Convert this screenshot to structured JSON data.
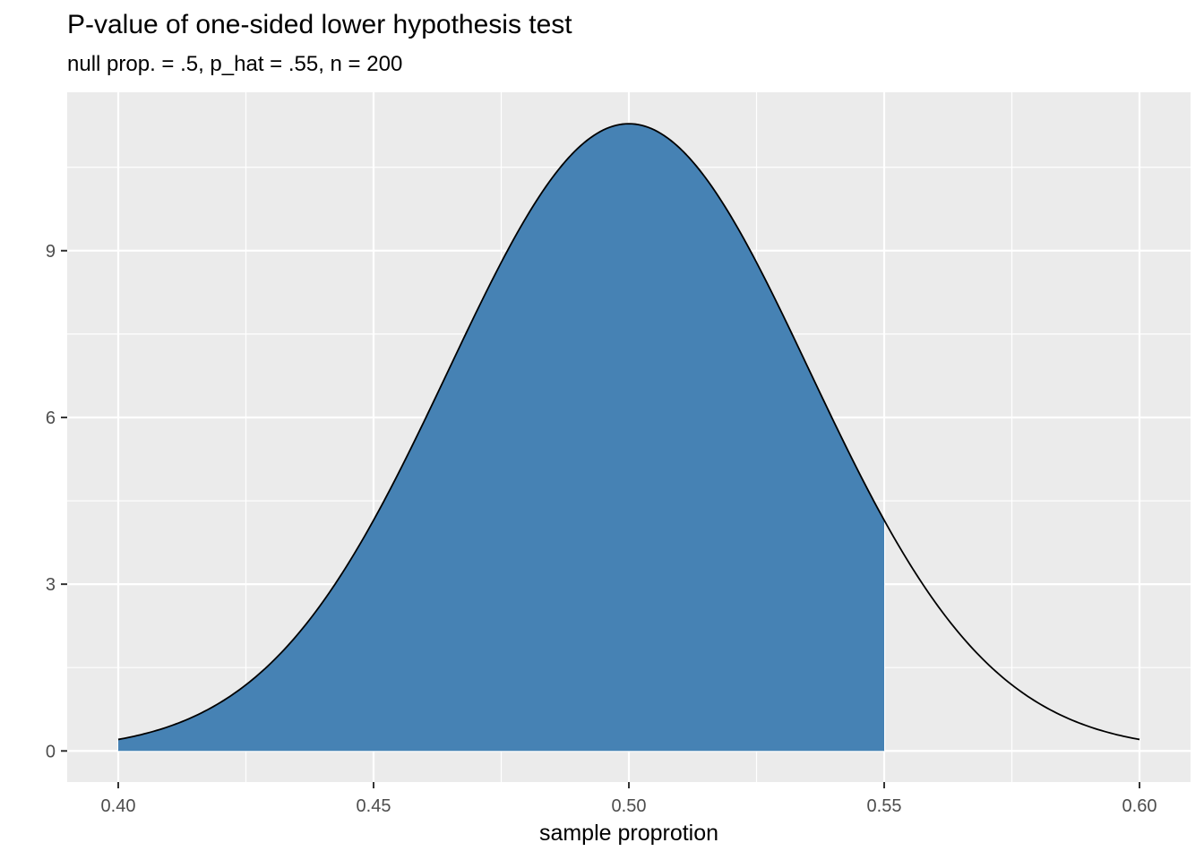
{
  "chart_data": {
    "type": "area",
    "title": "P-value of one-sided lower hypothesis test",
    "subtitle": "null prop. = .5, p_hat = .55, n = 200",
    "xlabel": "sample proprotion",
    "ylabel": "",
    "distribution": {
      "kind": "normal",
      "null_prop": 0.5,
      "p_hat": 0.55,
      "n": 200,
      "mean": 0.5,
      "sd": 0.0353553,
      "peak_density": 11.2838
    },
    "curve_x_range": [
      0.4,
      0.6
    ],
    "shaded_region": {
      "from": 0.4,
      "to": 0.55
    },
    "x_ticks": [
      0.4,
      0.45,
      0.5,
      0.55,
      0.6
    ],
    "x_tick_labels": [
      "0.40",
      "0.45",
      "0.50",
      "0.55",
      "0.60"
    ],
    "y_ticks": [
      0,
      3,
      6,
      9
    ],
    "y_tick_labels": [
      "0",
      "3",
      "6",
      "9"
    ],
    "xlim": [
      0.39,
      0.61
    ],
    "ylim": [
      -0.56,
      11.85
    ],
    "grid": "major-and-minor-white",
    "legend": "none",
    "colors": {
      "fill": "#4682B4",
      "curve": "#000000",
      "panel_background": "#EBEBEB",
      "grid": "#FFFFFF",
      "tick_label": "#4D4D4D",
      "tick_mark": "#333333",
      "title": "#000000"
    }
  }
}
